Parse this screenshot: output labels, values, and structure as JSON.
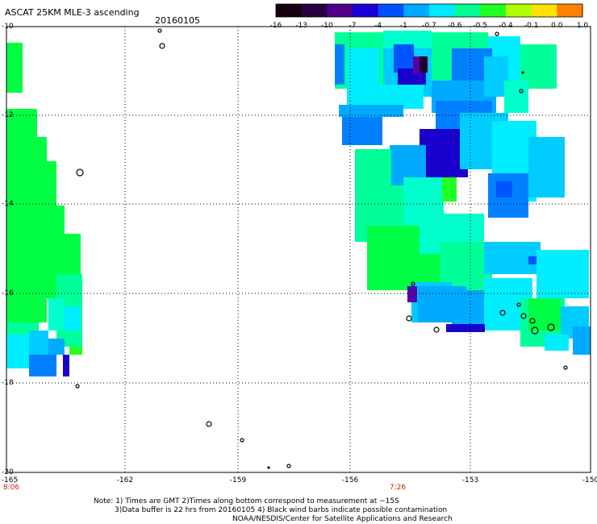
{
  "title": "ASCAT 25KM MLE-3 ascending",
  "date": "20160105",
  "colorbar": {
    "labels": [
      "-16",
      "-13",
      "-10",
      "-7",
      "-4",
      "-1",
      "-0.7",
      "-0.6",
      "-0.5",
      "-0.4",
      "-0.1",
      "0.0",
      "1.0"
    ],
    "colors": [
      "#120010",
      "#2a0040",
      "#50008a",
      "#1a00d8",
      "#0050ff",
      "#00a8ff",
      "#00e8ff",
      "#00ff90",
      "#20ff20",
      "#b0ff00",
      "#ffe000",
      "#ff8000",
      "#ff2000"
    ]
  },
  "axes": {
    "lat_labels": [
      "-10",
      "-12",
      "-14",
      "-16",
      "-18",
      "-20"
    ],
    "lon_labels": [
      "-165",
      "-162",
      "-159",
      "-156",
      "-153",
      "-150"
    ]
  },
  "times": [
    "8:06",
    "7:26"
  ],
  "notes": [
    "Note: 1) Times are GMT 2)Times along bottom correspond to measurement at ~15S",
    "3)Data buffer is 22 hrs from 20160105 4) Black wind barbs indicate possible contamination",
    "NOAA/NESDIS/Center for Satellite Applications and Research"
  ]
}
